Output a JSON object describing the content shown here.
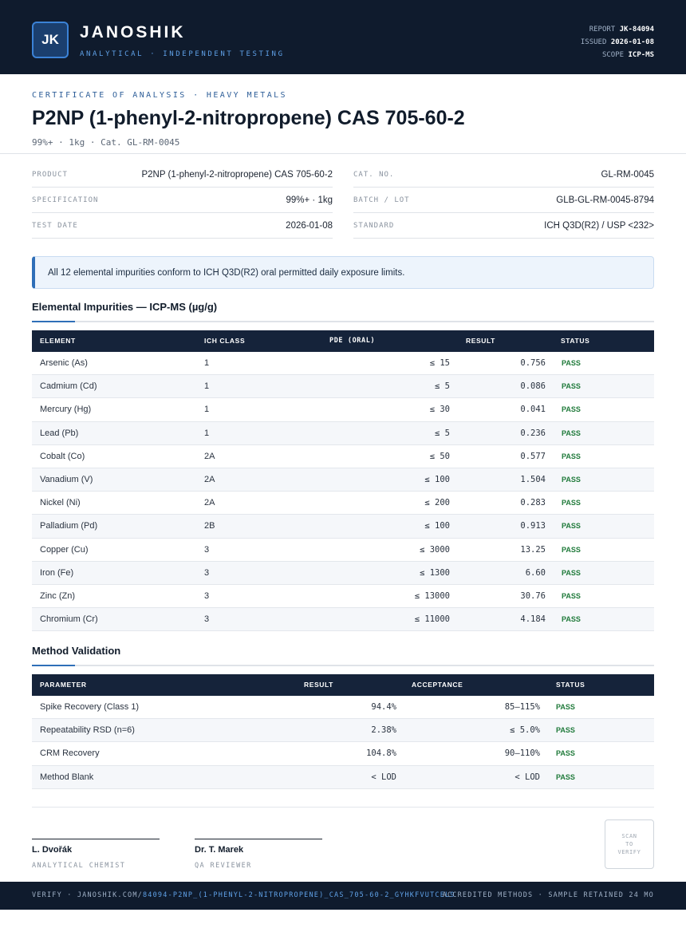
{
  "header": {
    "logo_initials": "JK",
    "brand": "JANOSHIK",
    "tagline": "ANALYTICAL · INDEPENDENT TESTING",
    "report_label": "REPORT",
    "report_value": "JK-84094",
    "issued_label": "ISSUED",
    "issued_value": "2026-01-08",
    "scope_label": "SCOPE",
    "scope_value": "ICP-MS"
  },
  "title_block": {
    "eyebrow": "CERTIFICATE OF ANALYSIS · HEAVY METALS",
    "title": "P2NP (1-phenyl-2-nitropropene) CAS 705-60-2",
    "subtitle": "99%+ · 1kg  ·  Cat. GL-RM-0045"
  },
  "info": {
    "left": [
      {
        "label": "PRODUCT",
        "value": "P2NP (1-phenyl-2-nitropropene) CAS 705-60-2"
      },
      {
        "label": "SPECIFICATION",
        "value": "99%+ · 1kg"
      },
      {
        "label": "TEST DATE",
        "value": "2026-01-08"
      }
    ],
    "right": [
      {
        "label": "CAT. NO.",
        "value": "GL-RM-0045"
      },
      {
        "label": "BATCH / LOT",
        "value": "GLB-GL-RM-0045-8794"
      },
      {
        "label": "STANDARD",
        "value": "ICH Q3D(R2) / USP <232>"
      }
    ]
  },
  "notice": "All 12 elemental impurities conform to ICH Q3D(R2) oral permitted daily exposure limits.",
  "impurities": {
    "title": "Elemental Impurities — ICP-MS (µg/g)",
    "columns": [
      "ELEMENT",
      "ICH CLASS",
      "PDE (ORAL)",
      "RESULT",
      "STATUS"
    ],
    "rows": [
      {
        "element": "Arsenic (As)",
        "class": "1",
        "pde": "≤ 15",
        "result": "0.756",
        "status": "PASS"
      },
      {
        "element": "Cadmium (Cd)",
        "class": "1",
        "pde": "≤ 5",
        "result": "0.086",
        "status": "PASS"
      },
      {
        "element": "Mercury (Hg)",
        "class": "1",
        "pde": "≤ 30",
        "result": "0.041",
        "status": "PASS"
      },
      {
        "element": "Lead (Pb)",
        "class": "1",
        "pde": "≤ 5",
        "result": "0.236",
        "status": "PASS"
      },
      {
        "element": "Cobalt (Co)",
        "class": "2A",
        "pde": "≤ 50",
        "result": "0.577",
        "status": "PASS"
      },
      {
        "element": "Vanadium (V)",
        "class": "2A",
        "pde": "≤ 100",
        "result": "1.504",
        "status": "PASS"
      },
      {
        "element": "Nickel (Ni)",
        "class": "2A",
        "pde": "≤ 200",
        "result": "0.283",
        "status": "PASS"
      },
      {
        "element": "Palladium (Pd)",
        "class": "2B",
        "pde": "≤ 100",
        "result": "0.913",
        "status": "PASS"
      },
      {
        "element": "Copper (Cu)",
        "class": "3",
        "pde": "≤ 3000",
        "result": "13.25",
        "status": "PASS"
      },
      {
        "element": "Iron (Fe)",
        "class": "3",
        "pde": "≤ 1300",
        "result": "6.60",
        "status": "PASS"
      },
      {
        "element": "Zinc (Zn)",
        "class": "3",
        "pde": "≤ 13000",
        "result": "30.76",
        "status": "PASS"
      },
      {
        "element": "Chromium (Cr)",
        "class": "3",
        "pde": "≤ 11000",
        "result": "4.184",
        "status": "PASS"
      }
    ]
  },
  "validation": {
    "title": "Method Validation",
    "columns": [
      "PARAMETER",
      "RESULT",
      "ACCEPTANCE",
      "STATUS"
    ],
    "rows": [
      {
        "parameter": "Spike Recovery (Class 1)",
        "result": "94.4%",
        "acceptance": "85–115%",
        "status": "PASS"
      },
      {
        "parameter": "Repeatability RSD (n=6)",
        "result": "2.38%",
        "acceptance": "≤ 5.0%",
        "status": "PASS"
      },
      {
        "parameter": "CRM Recovery",
        "result": "104.8%",
        "acceptance": "90–110%",
        "status": "PASS"
      },
      {
        "parameter": "Method Blank",
        "result": "< LOD",
        "acceptance": "< LOD",
        "status": "PASS"
      }
    ]
  },
  "signatures": [
    {
      "name": "L. Dvořák",
      "role": "ANALYTICAL CHEMIST"
    },
    {
      "name": "Dr. T. Marek",
      "role": "QA REVIEWER"
    }
  ],
  "qr_text": [
    "SCAN",
    "TO",
    "VERIFY"
  ],
  "footer": {
    "verify_prefix": "VERIFY · JANOSHIK.COM/",
    "verify_path": "84094-P2NP_(1-PHENYL-2-NITROPROPENE)_CAS_705-60-2_GYHKFVUTCEL9",
    "right": "ACCREDITED METHODS · SAMPLE RETAINED 24 MO"
  },
  "colors": {
    "header_bg": "#0f1b2d",
    "accent": "#2f6fb8",
    "pass": "#1f7a3a"
  }
}
